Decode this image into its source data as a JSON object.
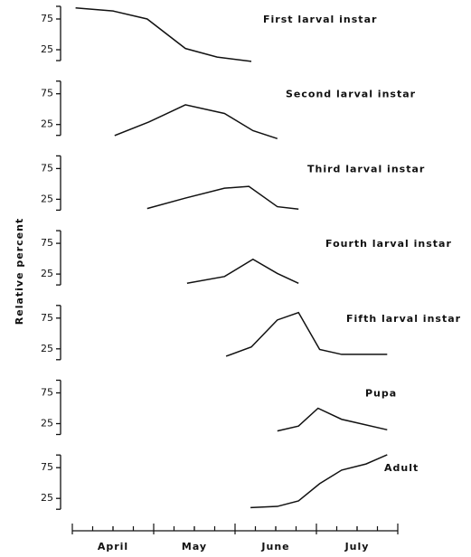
{
  "chart_data": [
    {
      "type": "line",
      "title": "First larval instar",
      "x": [
        0.04,
        0.5,
        0.92,
        1.39,
        1.78,
        2.2
      ],
      "values": [
        93,
        88,
        75,
        27,
        13,
        6
      ],
      "ylim": [
        0,
        100
      ],
      "yticks": [
        25,
        75
      ],
      "color": "#111"
    },
    {
      "type": "line",
      "title": "Second larval instar",
      "x": [
        0.52,
        0.94,
        1.39,
        1.87,
        2.22,
        2.52
      ],
      "values": [
        7,
        29,
        57,
        43,
        15,
        2
      ],
      "ylim": [
        0,
        100
      ],
      "yticks": [
        25,
        75
      ],
      "color": "#111"
    },
    {
      "type": "line",
      "title": "Third larval instar",
      "x": [
        0.92,
        1.39,
        1.87,
        2.17,
        2.52,
        2.78
      ],
      "values": [
        10,
        27,
        43,
        46,
        13,
        9
      ],
      "ylim": [
        0,
        100
      ],
      "yticks": [
        25,
        75
      ],
      "color": "#111"
    },
    {
      "type": "line",
      "title": "Fourth larval instar",
      "ylabel": "Relative percent",
      "x": [
        1.41,
        1.87,
        2.22,
        2.52,
        2.78
      ],
      "values": [
        10,
        21,
        49,
        26,
        10
      ],
      "ylim": [
        0,
        100
      ],
      "yticks": [
        25,
        75
      ],
      "color": "#111"
    },
    {
      "type": "line",
      "title": "Fifth larval instar",
      "x": [
        1.89,
        2.2,
        2.52,
        2.78,
        3.04,
        3.31,
        3.87
      ],
      "values": [
        13,
        28,
        72,
        84,
        24,
        16,
        16
      ],
      "ylim": [
        0,
        100
      ],
      "yticks": [
        25,
        75
      ],
      "color": "#111"
    },
    {
      "type": "line",
      "title": "Pupa",
      "x": [
        2.52,
        2.78,
        3.02,
        3.31,
        3.87
      ],
      "values": [
        13,
        21,
        50,
        32,
        15
      ],
      "ylim": [
        0,
        100
      ],
      "yticks": [
        25,
        75
      ],
      "color": "#111"
    },
    {
      "type": "line",
      "title": "Adult",
      "x": [
        2.19,
        2.52,
        2.78,
        3.04,
        3.31,
        3.61,
        3.87
      ],
      "values": [
        10,
        12,
        21,
        49,
        71,
        81,
        96
      ],
      "ylim": [
        0,
        100
      ],
      "yticks": [
        25,
        75
      ],
      "color": "#111",
      "xlim": [
        0,
        4
      ],
      "xticks": [
        {
          "value": 0.5,
          "label": "April"
        },
        {
          "value": 1.5,
          "label": "May"
        },
        {
          "value": 2.5,
          "label": "June"
        },
        {
          "value": 3.5,
          "label": "July"
        }
      ]
    }
  ]
}
